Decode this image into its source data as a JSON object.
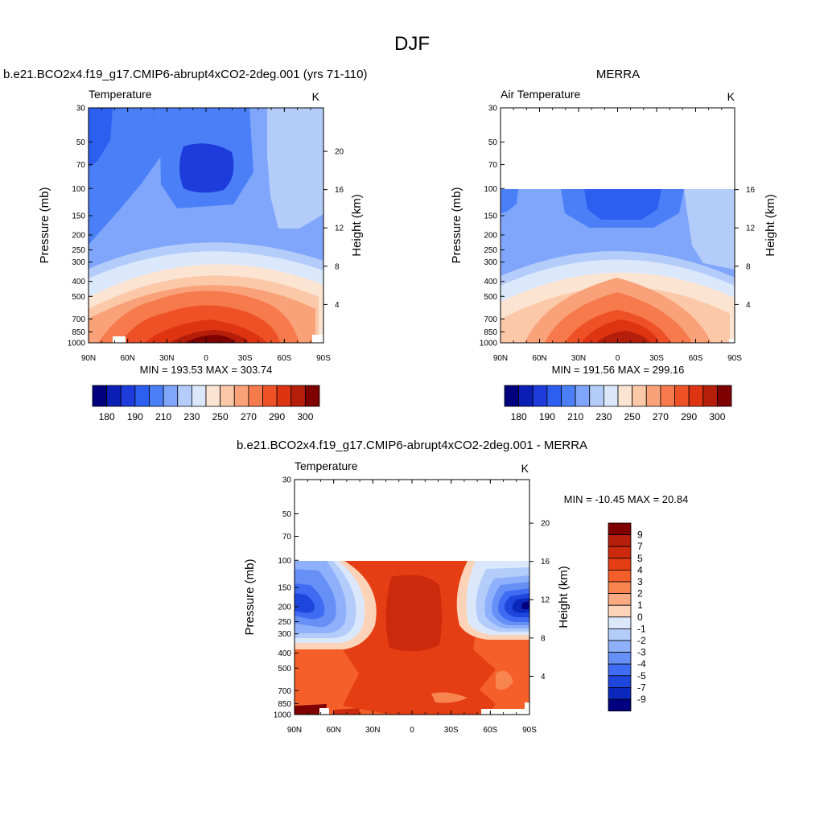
{
  "page": {
    "title": "DJF"
  },
  "chart_data": [
    {
      "type": "heatmap",
      "id": "model",
      "header": "b.e21.BCO2x4.f19_g17.CMIP6-abrupt4xCO2-2deg.001 (yrs 71-110)",
      "title": "Temperature",
      "units": "K",
      "xlabel": "",
      "ylabel": "Pressure (mb)",
      "ylabel_right": "Height (km)",
      "x_ticks": [
        "90N",
        "60N",
        "30N",
        "0",
        "30S",
        "60S",
        "90S"
      ],
      "y_ticks": [
        "30",
        "50",
        "70",
        "100",
        "150",
        "200",
        "250",
        "300",
        "400",
        "500",
        "700",
        "850",
        "1000"
      ],
      "height_ticks": [
        "20",
        "16",
        "12",
        "8",
        "4"
      ],
      "min_max_text": "MIN = 193.53  MAX = 303.74",
      "colorbar_labels": [
        "180",
        "190",
        "210",
        "230",
        "250",
        "270",
        "290",
        "300"
      ],
      "pressure_top_mb": 30
    },
    {
      "type": "heatmap",
      "id": "obs",
      "header": "MERRA",
      "title": "Air Temperature",
      "units": "K",
      "xlabel": "",
      "ylabel": "Pressure (mb)",
      "ylabel_right": "Height (km)",
      "x_ticks": [
        "90N",
        "60N",
        "30N",
        "0",
        "30S",
        "60S",
        "90S"
      ],
      "y_ticks": [
        "30",
        "50",
        "70",
        "100",
        "150",
        "200",
        "250",
        "300",
        "400",
        "500",
        "700",
        "850",
        "1000"
      ],
      "height_ticks": [
        "16",
        "12",
        "8",
        "4"
      ],
      "min_max_text": "MIN = 191.56  MAX = 299.16",
      "colorbar_labels": [
        "180",
        "190",
        "210",
        "230",
        "250",
        "270",
        "290",
        "300"
      ],
      "pressure_top_mb": 100
    },
    {
      "type": "heatmap",
      "id": "diff",
      "header": "b.e21.BCO2x4.f19_g17.CMIP6-abrupt4xCO2-2deg.001 - MERRA",
      "title": "Temperature",
      "units": "K",
      "xlabel": "",
      "ylabel": "Pressure (mb)",
      "ylabel_right": "Height (km)",
      "x_ticks": [
        "90N",
        "60N",
        "30N",
        "0",
        "30S",
        "60S",
        "90S"
      ],
      "y_ticks": [
        "30",
        "50",
        "70",
        "100",
        "150",
        "200",
        "250",
        "300",
        "400",
        "500",
        "700",
        "850",
        "1000"
      ],
      "height_ticks": [
        "20",
        "16",
        "12",
        "8",
        "4"
      ],
      "min_max_text": "MIN = -10.45  MAX =  20.84",
      "colorbar_labels": [
        "9",
        "7",
        "5",
        "4",
        "3",
        "2",
        "1",
        "0",
        "-1",
        "-2",
        "-3",
        "-4",
        "-5",
        "-7",
        "-9"
      ],
      "pressure_top_mb": 100
    }
  ],
  "colors": {
    "temp_scale": [
      "#00007f",
      "#0a1eb4",
      "#1e3cdc",
      "#2c5ef0",
      "#4a7ff8",
      "#7fa6fb",
      "#b4ccfa",
      "#dbe8fc",
      "#fce4d2",
      "#fbc8a8",
      "#f9a27a",
      "#f67a4c",
      "#ef5126",
      "#de3412",
      "#b41e0a",
      "#7f0000"
    ],
    "diff_scale": [
      "#7f0000",
      "#b41e0a",
      "#cc2a0c",
      "#e63e14",
      "#f5602a",
      "#f8844f",
      "#fbaa82",
      "#fcd3b8",
      "#dbe8fc",
      "#b4ccfa",
      "#8fb0fa",
      "#6690f6",
      "#3f6cf2",
      "#1e46dc",
      "#0a28bc",
      "#00007f"
    ]
  }
}
